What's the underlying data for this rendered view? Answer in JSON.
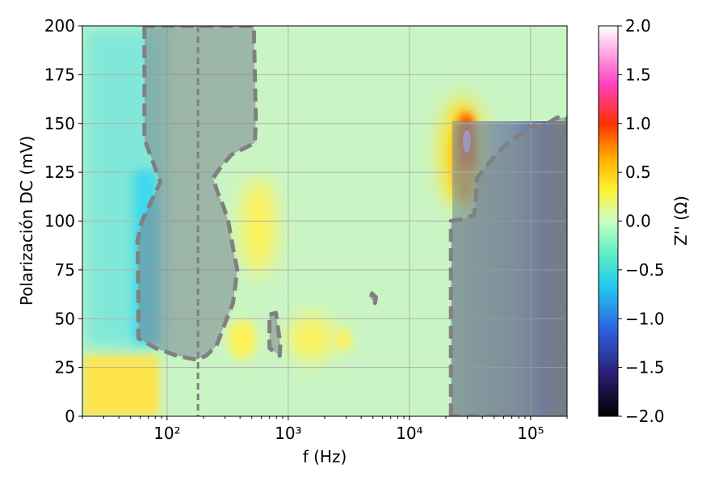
{
  "chart_data": {
    "type": "heatmap",
    "title": "",
    "xlabel": "f (Hz)",
    "ylabel": "Polarización DC (mV)",
    "x_scale": "log",
    "xlim": [
      20,
      200000
    ],
    "ylim": [
      0,
      200
    ],
    "x_ticks": [
      {
        "value": 100,
        "label": "10²"
      },
      {
        "value": 1000,
        "label": "10³"
      },
      {
        "value": 10000,
        "label": "10⁴"
      },
      {
        "value": 100000,
        "label": "10⁵"
      }
    ],
    "y_ticks": [
      0,
      25,
      50,
      75,
      100,
      125,
      150,
      175,
      200
    ],
    "grid": true,
    "colorbar": {
      "label": "Z'' (Ω)",
      "range": [
        -2.0,
        2.0
      ],
      "ticks": [
        "2.0",
        "1.5",
        "1.0",
        "0.5",
        "0.0",
        "−0.5",
        "−1.0",
        "−1.5",
        "−2.0"
      ],
      "tick_values": [
        2.0,
        1.5,
        1.0,
        0.5,
        0.0,
        -0.5,
        -1.0,
        -1.5,
        -2.0
      ]
    },
    "vertical_line": {
      "x": 180,
      "style": "dashed",
      "color": "#808080"
    },
    "contour_regions": [
      {
        "name": "low-frequency region",
        "points": [
          [
            65,
            200
          ],
          [
            65,
            142
          ],
          [
            88,
            120
          ],
          [
            62,
            100
          ],
          [
            57,
            90
          ],
          [
            58,
            60
          ],
          [
            58,
            40
          ],
          [
            80,
            35
          ],
          [
            120,
            31
          ],
          [
            175,
            29
          ],
          [
            210,
            31
          ],
          [
            255,
            36
          ],
          [
            320,
            52
          ],
          [
            350,
            58
          ],
          [
            380,
            75
          ],
          [
            360,
            82
          ],
          [
            320,
            100
          ],
          [
            290,
            108
          ],
          [
            260,
            115
          ],
          [
            240,
            122
          ],
          [
            280,
            128
          ],
          [
            340,
            134
          ],
          [
            530,
            140
          ],
          [
            540,
            152
          ],
          [
            520,
            200
          ]
        ]
      },
      {
        "name": "small region",
        "points": [
          [
            700,
            52
          ],
          [
            790,
            53
          ],
          [
            860,
            37
          ],
          [
            850,
            31
          ],
          [
            770,
            33
          ],
          [
            700,
            35
          ]
        ]
      },
      {
        "name": "tiny region",
        "points": [
          [
            4900,
            63
          ],
          [
            5300,
            61
          ],
          [
            5200,
            58
          ],
          [
            4800,
            60
          ]
        ]
      },
      {
        "name": "high-frequency region",
        "points": [
          [
            22000,
            0
          ],
          [
            22000,
            100
          ],
          [
            27000,
            101
          ],
          [
            34000,
            103
          ],
          [
            35000,
            108
          ],
          [
            36000,
            122
          ],
          [
            43000,
            128
          ],
          [
            55000,
            136
          ],
          [
            68000,
            141
          ],
          [
            100000,
            148
          ],
          [
            130000,
            149
          ],
          [
            165000,
            153
          ],
          [
            200000,
            153
          ],
          [
            200000,
            0
          ]
        ]
      }
    ]
  }
}
